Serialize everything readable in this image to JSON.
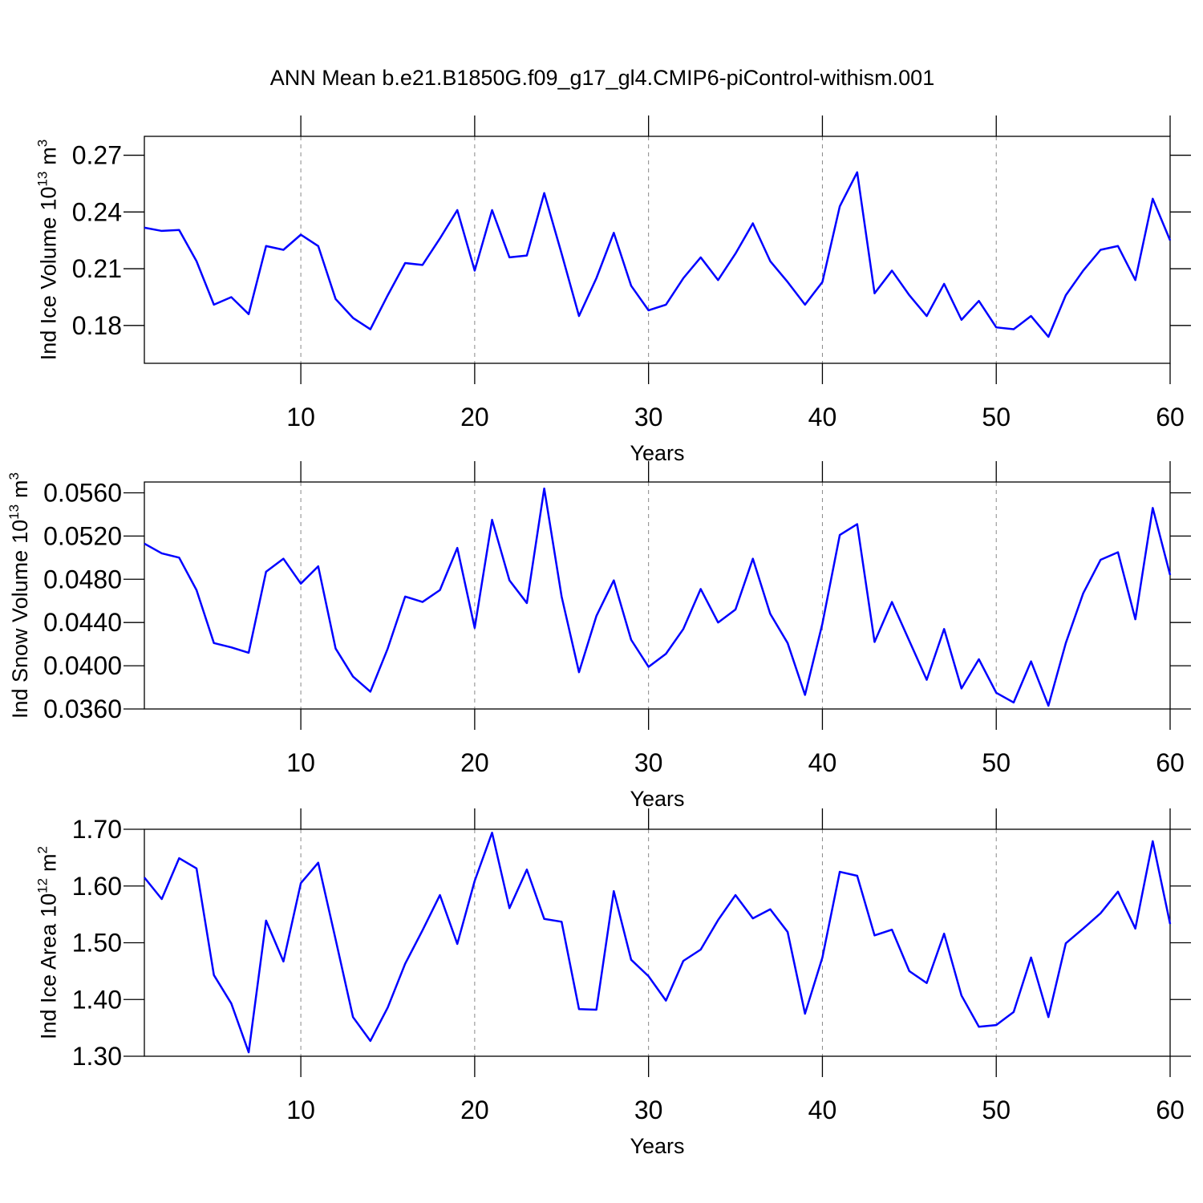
{
  "title": "ANN Mean b.e21.B1850G.f09_g17_gl4.CMIP6-piControl-withism.001",
  "chart_data": [
    {
      "type": "line",
      "xlabel": "Years",
      "ylabel": {
        "text": "Ind Ice Volume",
        "scale": "10",
        "scale_exp": "13",
        "unit": "m",
        "unit_exp": "3"
      },
      "x": [
        1,
        2,
        3,
        4,
        5,
        6,
        7,
        8,
        9,
        10,
        11,
        12,
        13,
        14,
        15,
        16,
        17,
        18,
        19,
        20,
        21,
        22,
        23,
        24,
        25,
        26,
        27,
        28,
        29,
        30,
        31,
        32,
        33,
        34,
        35,
        36,
        37,
        38,
        39,
        40,
        41,
        42,
        43,
        44,
        45,
        46,
        47,
        48,
        49,
        50,
        51,
        52,
        53,
        54,
        55,
        56,
        57,
        58,
        59,
        60
      ],
      "values": [
        0.2317,
        0.23,
        0.2305,
        0.214,
        0.191,
        0.195,
        0.186,
        0.222,
        0.22,
        0.228,
        0.222,
        0.194,
        0.184,
        0.178,
        0.196,
        0.213,
        0.212,
        0.226,
        0.241,
        0.209,
        0.241,
        0.216,
        0.217,
        0.25,
        0.218,
        0.185,
        0.205,
        0.229,
        0.201,
        0.188,
        0.191,
        0.205,
        0.216,
        0.204,
        0.218,
        0.234,
        0.214,
        0.203,
        0.191,
        0.203,
        0.243,
        0.261,
        0.197,
        0.209,
        0.196,
        0.185,
        0.202,
        0.183,
        0.193,
        0.179,
        0.178,
        0.185,
        0.174,
        0.196,
        0.209,
        0.22,
        0.222,
        0.204,
        0.247,
        0.225
      ],
      "color": "#0000ff",
      "xlim": [
        1,
        60
      ],
      "xticks": [
        10,
        20,
        30,
        40,
        50,
        60
      ],
      "ylim": [
        0.16,
        0.28
      ],
      "yticks": [
        0.18,
        0.21,
        0.24,
        0.27
      ],
      "grid": true
    },
    {
      "type": "line",
      "xlabel": "Years",
      "ylabel": {
        "text": "Ind Snow Volume",
        "scale": "10",
        "scale_exp": "13",
        "unit": "m",
        "unit_exp": "3"
      },
      "x": [
        1,
        2,
        3,
        4,
        5,
        6,
        7,
        8,
        9,
        10,
        11,
        12,
        13,
        14,
        15,
        16,
        17,
        18,
        19,
        20,
        21,
        22,
        23,
        24,
        25,
        26,
        27,
        28,
        29,
        30,
        31,
        32,
        33,
        34,
        35,
        36,
        37,
        38,
        39,
        40,
        41,
        42,
        43,
        44,
        45,
        46,
        47,
        48,
        49,
        50,
        51,
        52,
        53,
        54,
        55,
        56,
        57,
        58,
        59,
        60
      ],
      "values": [
        0.0513,
        0.0504,
        0.05,
        0.047,
        0.0421,
        0.0417,
        0.0412,
        0.0487,
        0.0499,
        0.0476,
        0.0492,
        0.0416,
        0.039,
        0.0376,
        0.0416,
        0.0464,
        0.0459,
        0.047,
        0.0509,
        0.0435,
        0.0535,
        0.0479,
        0.0458,
        0.0564,
        0.0464,
        0.0394,
        0.0446,
        0.0479,
        0.0424,
        0.0399,
        0.0411,
        0.0434,
        0.0471,
        0.044,
        0.0452,
        0.0499,
        0.0448,
        0.0421,
        0.0373,
        0.0439,
        0.0521,
        0.0531,
        0.0422,
        0.0459,
        0.0423,
        0.0387,
        0.0434,
        0.0379,
        0.0406,
        0.0375,
        0.0366,
        0.0404,
        0.0363,
        0.0421,
        0.0467,
        0.0498,
        0.0505,
        0.0443,
        0.0546,
        0.0484
      ],
      "color": "#0000ff",
      "xlim": [
        1,
        60
      ],
      "xticks": [
        10,
        20,
        30,
        40,
        50,
        60
      ],
      "ylim": [
        0.036,
        0.057
      ],
      "yticks": [
        {
          "value": 0.036,
          "label": "0.0360"
        },
        {
          "value": 0.04,
          "label": "0.0400"
        },
        {
          "value": 0.044,
          "label": "0.0440"
        },
        {
          "value": 0.048,
          "label": "0.0480"
        },
        {
          "value": 0.052,
          "label": "0.0520"
        },
        {
          "value": 0.056,
          "label": "0.0560"
        }
      ],
      "grid": true
    },
    {
      "type": "line",
      "xlabel": "Years",
      "ylabel": {
        "text": "Ind Ice Area",
        "scale": "10",
        "scale_exp": "12",
        "unit": "m",
        "unit_exp": "2"
      },
      "x": [
        1,
        2,
        3,
        4,
        5,
        6,
        7,
        8,
        9,
        10,
        11,
        12,
        13,
        14,
        15,
        16,
        17,
        18,
        19,
        20,
        21,
        22,
        23,
        24,
        25,
        26,
        27,
        28,
        29,
        30,
        31,
        32,
        33,
        34,
        35,
        36,
        37,
        38,
        39,
        40,
        41,
        42,
        43,
        44,
        45,
        46,
        47,
        48,
        49,
        50,
        51,
        52,
        53,
        54,
        55,
        56,
        57,
        58,
        59,
        60
      ],
      "values": [
        1.615,
        1.577,
        1.649,
        1.631,
        1.443,
        1.393,
        1.307,
        1.539,
        1.467,
        1.605,
        1.641,
        1.506,
        1.369,
        1.327,
        1.386,
        1.463,
        1.522,
        1.584,
        1.498,
        1.609,
        1.694,
        1.561,
        1.629,
        1.542,
        1.537,
        1.383,
        1.382,
        1.591,
        1.47,
        1.441,
        1.398,
        1.468,
        1.488,
        1.54,
        1.584,
        1.543,
        1.559,
        1.519,
        1.375,
        1.474,
        1.625,
        1.618,
        1.513,
        1.523,
        1.45,
        1.429,
        1.516,
        1.407,
        1.352,
        1.355,
        1.378,
        1.474,
        1.369,
        1.499,
        1.525,
        1.552,
        1.59,
        1.525,
        1.679,
        1.533
      ],
      "color": "#0000ff",
      "xlim": [
        1,
        60
      ],
      "xticks": [
        10,
        20,
        30,
        40,
        50,
        60
      ],
      "ylim": [
        1.3,
        1.7
      ],
      "yticks": [
        {
          "value": 1.3,
          "label": "1.30"
        },
        {
          "value": 1.4,
          "label": "1.40"
        },
        {
          "value": 1.5,
          "label": "1.50"
        },
        {
          "value": 1.6,
          "label": "1.60"
        },
        {
          "value": 1.7,
          "label": "1.70"
        }
      ],
      "grid": true
    }
  ]
}
